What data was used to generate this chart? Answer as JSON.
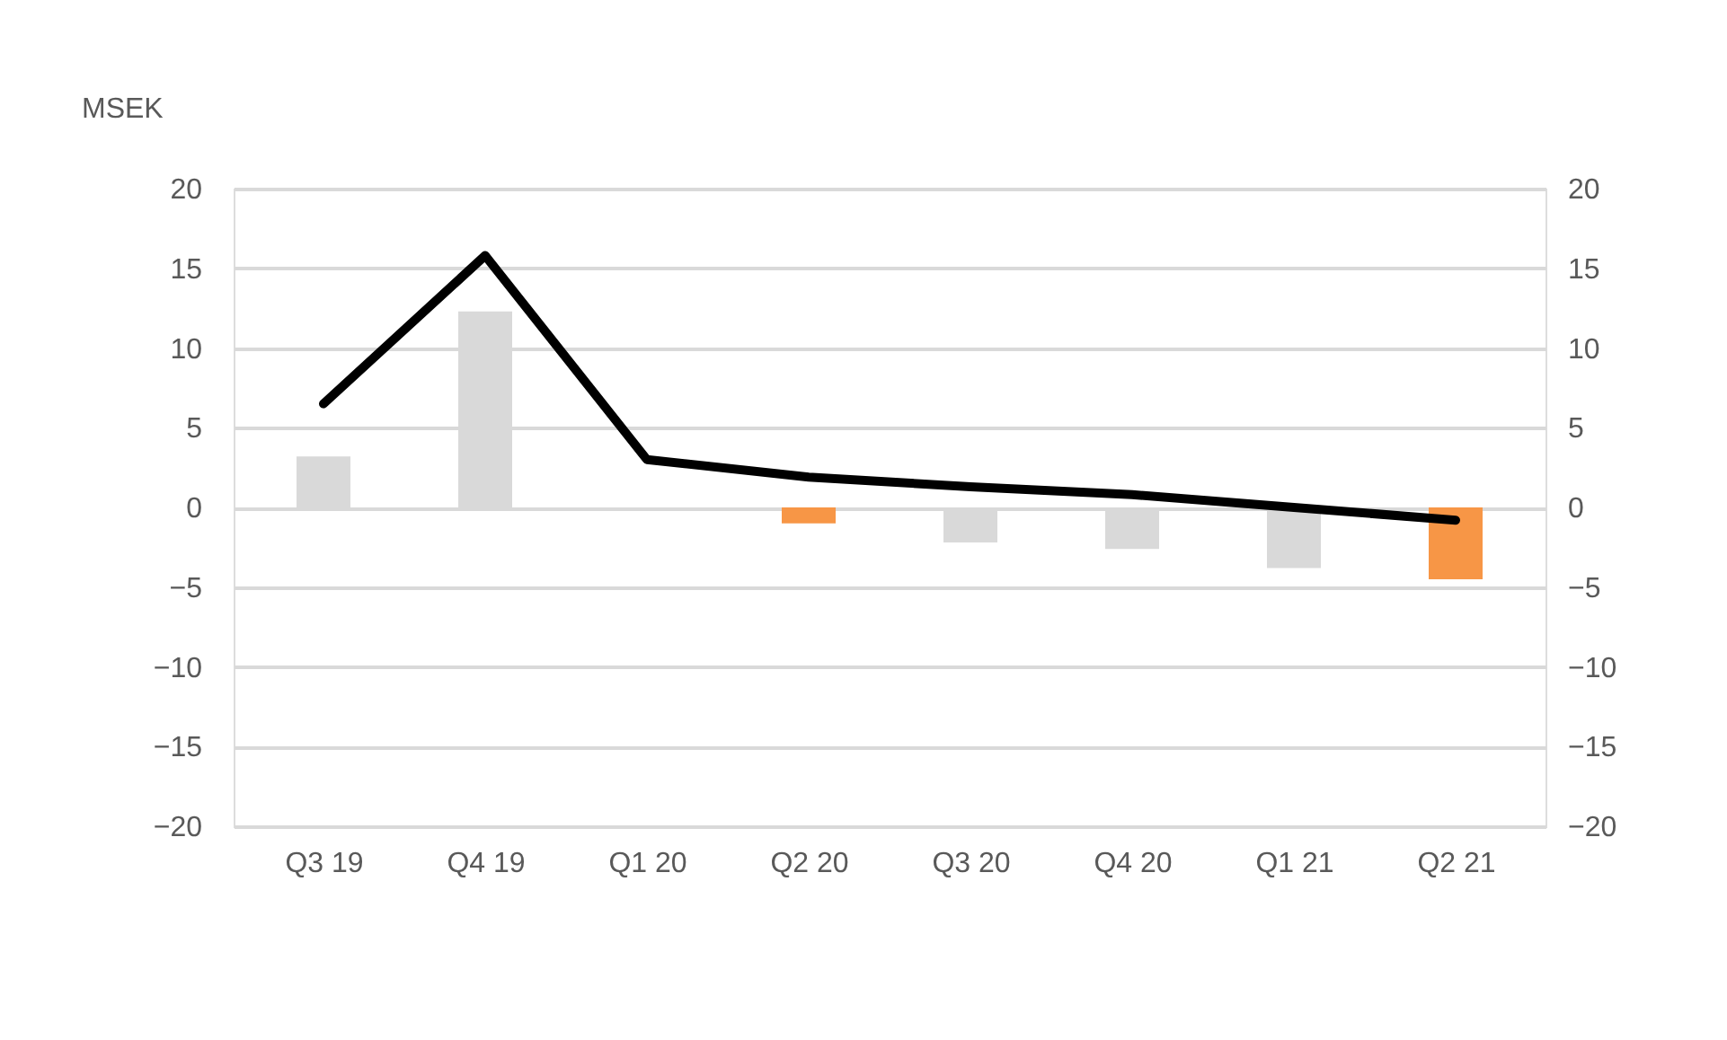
{
  "chart_data": {
    "type": "bar",
    "ylabel": "MSEK",
    "categories": [
      "Q3 19",
      "Q4 19",
      "Q1 20",
      "Q2 20",
      "Q3 20",
      "Q4 20",
      "Q1 21",
      "Q2 21"
    ],
    "series": [
      {
        "values": [
          3.2,
          12.3,
          0,
          -1.0,
          -2.2,
          -2.6,
          -3.8,
          -4.5
        ],
        "colors": [
          "#d9d9d9",
          "#d9d9d9",
          "#d9d9d9",
          "#f79646",
          "#d9d9d9",
          "#d9d9d9",
          "#d9d9d9",
          "#f79646"
        ]
      },
      {
        "type": "line",
        "color": "#000000",
        "values": [
          6.5,
          15.8,
          3.0,
          1.9,
          1.3,
          0.8,
          0.0,
          -0.8
        ],
        "marker": "none",
        "line_style": "solid"
      }
    ],
    "ylim": [
      -20,
      20
    ],
    "yticks": [
      -20,
      -15,
      -10,
      -5,
      0,
      5,
      10,
      15,
      20
    ],
    "y2lim": [
      -20,
      20
    ],
    "y2ticks": [
      -20,
      -15,
      -10,
      -5,
      0,
      5,
      10,
      15,
      20
    ],
    "grid": "y",
    "legend": false
  }
}
